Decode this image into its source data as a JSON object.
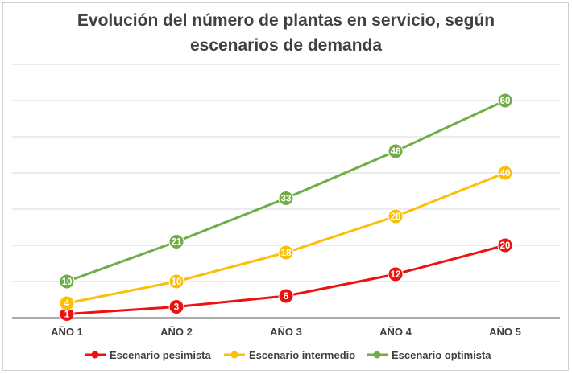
{
  "chart_data": {
    "type": "line",
    "title_line1": "Evolución del número de plantas en servicio, según",
    "title_line2": "escenarios de demanda",
    "categories": [
      "AÑO 1",
      "AÑO 2",
      "AÑO 3",
      "AÑO 4",
      "AÑO 5"
    ],
    "ylim": [
      0,
      70
    ],
    "grid": true,
    "legend_position": "bottom",
    "series": [
      {
        "name": "Escenario pesimista",
        "color": "#ee1111",
        "values": [
          1,
          3,
          6,
          12,
          20
        ]
      },
      {
        "name": "Escenario intermedio",
        "color": "#fbbf0a",
        "values": [
          4,
          10,
          18,
          28,
          40
        ]
      },
      {
        "name": "Escenario optimista",
        "color": "#70ad47",
        "values": [
          10,
          21,
          33,
          46,
          60
        ]
      }
    ]
  }
}
